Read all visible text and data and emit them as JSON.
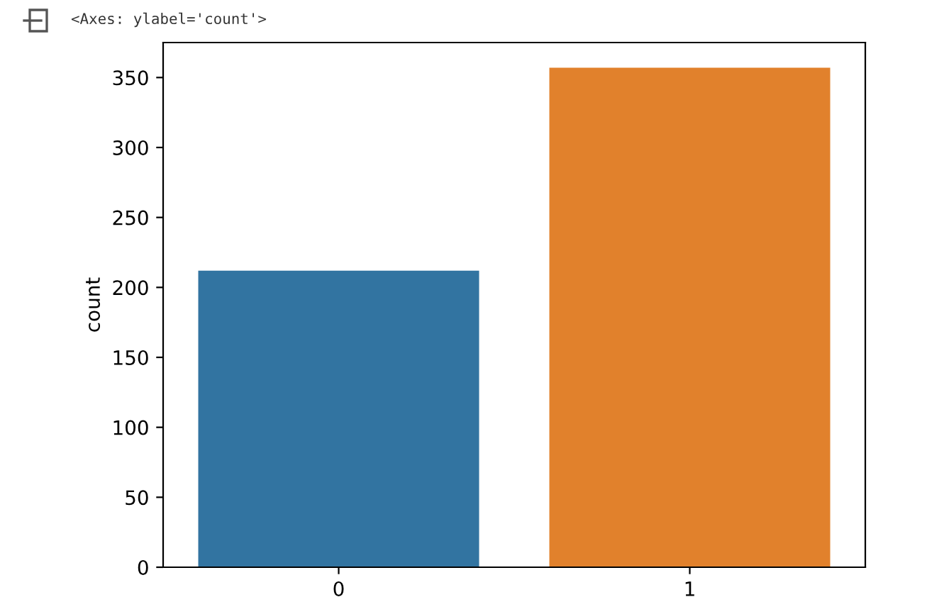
{
  "chart_data": {
    "type": "bar",
    "ylabel": "count",
    "annotations": [
      "<Axes: ylabel='count'>"
    ],
    "categories": [
      "0",
      "1"
    ],
    "values": [
      212,
      357
    ],
    "colors": [
      "#3274a1",
      "#e1812c"
    ],
    "ylim": [
      0,
      375
    ],
    "yticks": [
      0,
      50,
      100,
      150,
      200,
      250,
      300,
      350
    ],
    "grid": false
  }
}
